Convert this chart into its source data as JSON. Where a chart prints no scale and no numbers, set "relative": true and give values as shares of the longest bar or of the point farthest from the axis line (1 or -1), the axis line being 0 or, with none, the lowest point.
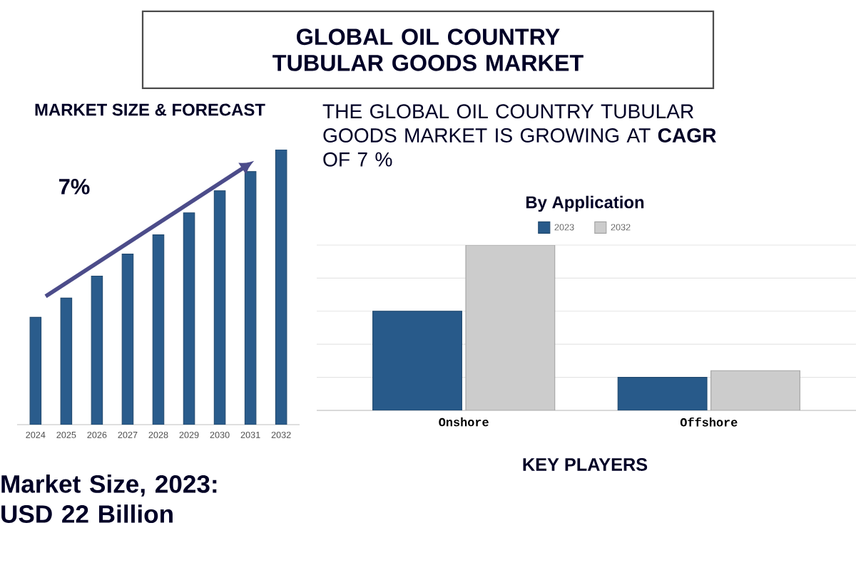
{
  "chart_data": [
    {
      "type": "other",
      "title": "GLOBAL OIL COUNTRY TUBULAR GOODS MARKET",
      "annotations": [
        "THE GLOBAL OIL COUNTRY TUBULAR GOODS MARKET IS GROWING AT **CAGR** OF 7 %",
        "Market Size, 2023: USD 22 Billion",
        "KEY PLAYERS"
      ]
    },
    {
      "type": "bar",
      "title": "MARKET SIZE & FORECAST",
      "relative": true,
      "categories": [
        "2024",
        "2025",
        "2026",
        "2027",
        "2028",
        "2029",
        "2030",
        "2031",
        "2032"
      ],
      "values": [
        0.39,
        0.46,
        0.54,
        0.62,
        0.69,
        0.77,
        0.85,
        0.92,
        1.0
      ],
      "color": "#2a5c8c",
      "annotations": [
        "7%"
      ]
    },
    {
      "type": "bar",
      "title": "By Application",
      "relative": true,
      "categories": [
        "Onshore",
        "Offshore"
      ],
      "grid": "y",
      "legend": "top",
      "series": [
        {
          "name": "2023",
          "color": "#285a8a",
          "values": [
            0.6,
            0.2
          ]
        },
        {
          "name": "2032",
          "color": "#cccccc",
          "values": [
            1.0,
            0.24
          ]
        }
      ]
    }
  ]
}
